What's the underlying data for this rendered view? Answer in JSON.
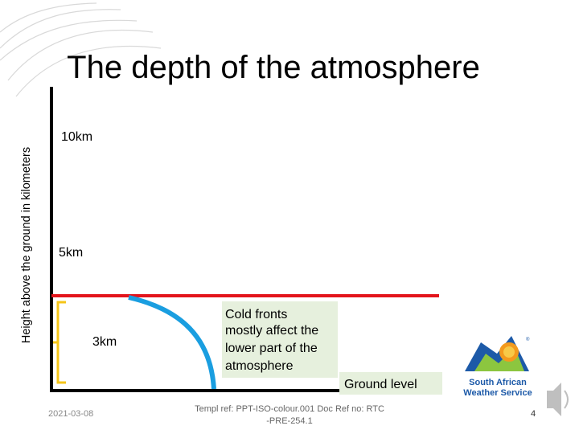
{
  "header": {
    "title": "The depth of the atmosphere"
  },
  "axis_label": "Height above the ground in kilometers",
  "levels": [
    "10km",
    "5km",
    "3km"
  ],
  "callout": [
    "Cold fronts",
    "mostly affect the",
    "lower part of the",
    "atmosphere"
  ],
  "ground_label": "Ground level",
  "logo": [
    "South African",
    "Weather Service"
  ],
  "footer": {
    "date": "2021-03-08",
    "ref": [
      "Templ ref: PPT-ISO-colour.001    Doc Ref no: RTC",
      "-PRE-254.1"
    ],
    "page": "4"
  }
}
